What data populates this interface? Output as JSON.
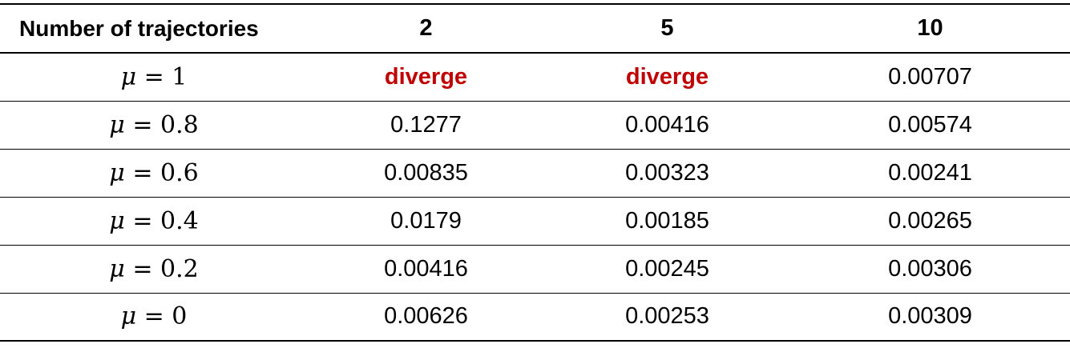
{
  "table": {
    "header": {
      "label": "Number of trajectories",
      "columns": [
        "2",
        "5",
        "10"
      ]
    },
    "rows": [
      {
        "mu_symbol": "μ",
        "mu_rest": " = 1",
        "cells": [
          "diverge",
          "diverge",
          "0.00707"
        ]
      },
      {
        "mu_symbol": "μ",
        "mu_rest": " = 0.8",
        "cells": [
          "0.1277",
          "0.00416",
          "0.00574"
        ]
      },
      {
        "mu_symbol": "μ",
        "mu_rest": " = 0.6",
        "cells": [
          "0.00835",
          "0.00323",
          "0.00241"
        ]
      },
      {
        "mu_symbol": "μ",
        "mu_rest": " = 0.4",
        "cells": [
          "0.0179",
          "0.00185",
          "0.00265"
        ]
      },
      {
        "mu_symbol": "μ",
        "mu_rest": " = 0.2",
        "cells": [
          "0.00416",
          "0.00245",
          "0.00306"
        ]
      },
      {
        "mu_symbol": "μ",
        "mu_rest": " = 0",
        "cells": [
          "0.00626",
          "0.00253",
          "0.00309"
        ]
      }
    ]
  },
  "colors": {
    "text": "#000000",
    "diverge": "#c00000",
    "rule": "#000000"
  }
}
